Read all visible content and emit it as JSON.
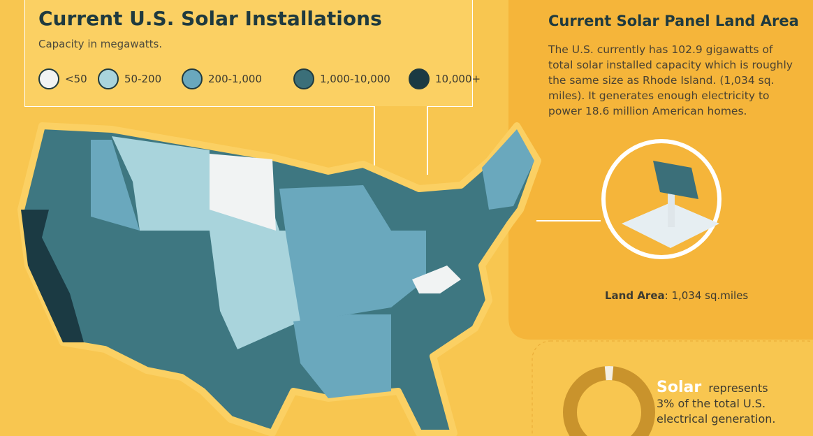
{
  "header": {
    "title": "Current U.S. Solar Installations",
    "subtitle": "Capacity in megawatts."
  },
  "legend": [
    {
      "label": "<50",
      "color": "#f1f3f3"
    },
    {
      "label": "50-200",
      "color": "#a9d4dc"
    },
    {
      "label": "200-1,000",
      "color": "#6aa8bd"
    },
    {
      "label": "1,000-10,000",
      "color": "#3b6f79"
    },
    {
      "label": "10,000+",
      "color": "#1b3a43"
    }
  ],
  "panel": {
    "title": "Current Solar Panel Land Area",
    "text": "The U.S. currently has 102.9 gigawatts of total solar installed capacity which is roughly the same size as Rhode Island. (1,034 sq. miles). It generates enough electricity to power 18.6 million American homes.",
    "land_label": "Land Area",
    "land_value": ": 1,034 sq.miles"
  },
  "callout": {
    "lead": "Solar",
    "verb": "represents",
    "share": {
      "value": 3,
      "label": "3%"
    },
    "rest": " of the total U.S.",
    "end": "electrical generation."
  }
}
